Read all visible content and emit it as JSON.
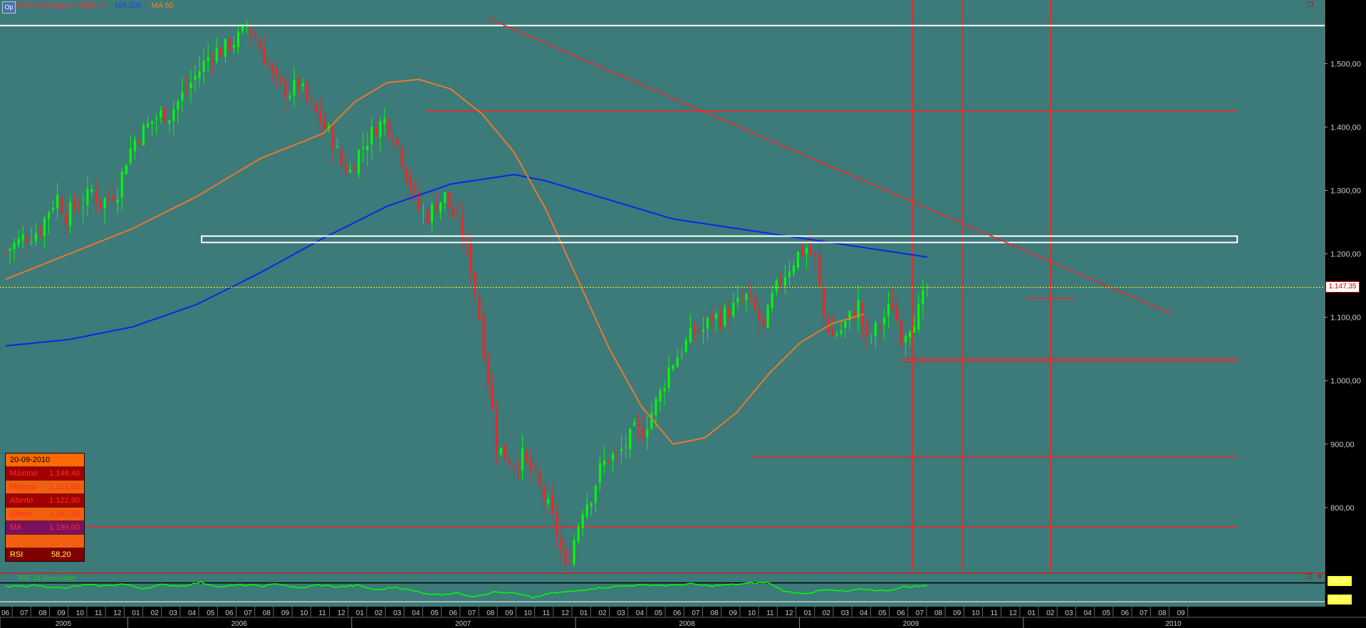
{
  "header": {
    "series_label": "SP500 | Semanal TMG+0",
    "ma200_label": "MA 200",
    "ma60_label": "MA 60"
  },
  "colors": {
    "background": "#3d7a7a",
    "up_candle": "#00ff00",
    "down_candle": "#ff2020",
    "ma200": "#0a28e6",
    "ma60": "#e87a2a",
    "trendline": "#ff2020",
    "level_line": "#ff2020",
    "white_zone": "#ffffff",
    "last_price_line": "#ffff00",
    "rsi_line": "#00ff00"
  },
  "infobox": {
    "date": "20-09-2010",
    "rows": [
      {
        "k": "Máximo",
        "v": "1.148,40"
      },
      {
        "k": "Mínimo",
        "v": "1.121,60"
      },
      {
        "k": "Aberto",
        "v": "1.122,60"
      },
      {
        "k": "Último",
        "v": "1.147,35"
      },
      {
        "k": "MA",
        "v": "1.199,00"
      },
      {
        "k": "",
        "v": ""
      }
    ],
    "rsi_label": "RSI",
    "rsi_value": "58,20"
  },
  "last_price_tag": "1.147,35",
  "rsi_panel": {
    "label": "RSI 14 Suavizado",
    "tag_top": "68,20",
    "tag_bottom": "30,00"
  },
  "chart_data": {
    "type": "candlestick",
    "timeframe": "weekly",
    "ylim": [
      700,
      1580
    ],
    "y_ticks": [
      {
        "value": 800,
        "label": "800,00"
      },
      {
        "value": 900,
        "label": "900,00"
      },
      {
        "value": 1000,
        "label": "1.000,00"
      },
      {
        "value": 1100,
        "label": "1.100,00"
      },
      {
        "value": 1200,
        "label": "1.200,00"
      },
      {
        "value": 1300,
        "label": "1.300,00"
      },
      {
        "value": 1400,
        "label": "1.400,00"
      },
      {
        "value": 1500,
        "label": "1.500,00"
      }
    ],
    "month_labels": [
      "06",
      "07",
      "08",
      "09",
      "10",
      "11",
      "12",
      "01",
      "02",
      "03",
      "04",
      "05",
      "06",
      "07",
      "08",
      "09",
      "10",
      "11",
      "12",
      "01",
      "02",
      "03",
      "04",
      "05",
      "06",
      "07",
      "08",
      "09",
      "10",
      "11",
      "12",
      "01",
      "02",
      "03",
      "04",
      "05",
      "06",
      "07",
      "08",
      "09",
      "10",
      "11",
      "12",
      "01",
      "02",
      "03",
      "04",
      "05",
      "06",
      "07",
      "08",
      "09",
      "10",
      "11",
      "12",
      "01",
      "02",
      "03",
      "04",
      "05",
      "06",
      "07",
      "08",
      "09"
    ],
    "year_labels": [
      "2005",
      "2006",
      "2007",
      "2008",
      "2009",
      "2010"
    ],
    "year_start_month_index": [
      0,
      7,
      19,
      31,
      43,
      55
    ],
    "close_anchors": [
      [
        0,
        1205
      ],
      [
        2,
        1215
      ],
      [
        4,
        1225
      ],
      [
        6,
        1230
      ],
      [
        8,
        1240
      ],
      [
        10,
        1270
      ],
      [
        12,
        1290
      ],
      [
        14,
        1260
      ],
      [
        16,
        1275
      ],
      [
        18,
        1280
      ],
      [
        20,
        1300
      ],
      [
        22,
        1280
      ],
      [
        24,
        1290
      ],
      [
        26,
        1300
      ],
      [
        28,
        1350
      ],
      [
        30,
        1380
      ],
      [
        32,
        1395
      ],
      [
        34,
        1410
      ],
      [
        36,
        1420
      ],
      [
        38,
        1420
      ],
      [
        40,
        1440
      ],
      [
        42,
        1460
      ],
      [
        44,
        1480
      ],
      [
        46,
        1500
      ],
      [
        48,
        1520
      ],
      [
        50,
        1520
      ],
      [
        52,
        1530
      ],
      [
        54,
        1540
      ],
      [
        56,
        1560
      ],
      [
        58,
        1540
      ],
      [
        60,
        1510
      ],
      [
        62,
        1480
      ],
      [
        64,
        1460
      ],
      [
        66,
        1455
      ],
      [
        68,
        1470
      ],
      [
        70,
        1440
      ],
      [
        72,
        1420
      ],
      [
        74,
        1400
      ],
      [
        76,
        1380
      ],
      [
        78,
        1340
      ],
      [
        80,
        1330
      ],
      [
        82,
        1360
      ],
      [
        84,
        1380
      ],
      [
        86,
        1400
      ],
      [
        88,
        1410
      ],
      [
        90,
        1390
      ],
      [
        92,
        1350
      ],
      [
        94,
        1310
      ],
      [
        96,
        1270
      ],
      [
        98,
        1260
      ],
      [
        100,
        1280
      ],
      [
        102,
        1290
      ],
      [
        104,
        1260
      ],
      [
        106,
        1230
      ],
      [
        108,
        1180
      ],
      [
        110,
        1100
      ],
      [
        112,
        1000
      ],
      [
        114,
        900
      ],
      [
        116,
        880
      ],
      [
        118,
        870
      ],
      [
        120,
        880
      ],
      [
        122,
        860
      ],
      [
        124,
        830
      ],
      [
        126,
        800
      ],
      [
        128,
        760
      ],
      [
        130,
        700
      ],
      [
        132,
        750
      ],
      [
        134,
        800
      ],
      [
        136,
        820
      ],
      [
        138,
        860
      ],
      [
        140,
        880
      ],
      [
        142,
        880
      ],
      [
        144,
        900
      ],
      [
        146,
        920
      ],
      [
        148,
        920
      ],
      [
        150,
        950
      ],
      [
        152,
        980
      ],
      [
        154,
        1020
      ],
      [
        156,
        1040
      ],
      [
        158,
        1060
      ],
      [
        160,
        1080
      ],
      [
        162,
        1080
      ],
      [
        164,
        1100
      ],
      [
        166,
        1100
      ],
      [
        168,
        1110
      ],
      [
        170,
        1120
      ],
      [
        172,
        1130
      ],
      [
        174,
        1110
      ],
      [
        176,
        1080
      ],
      [
        178,
        1130
      ],
      [
        180,
        1160
      ],
      [
        182,
        1180
      ],
      [
        184,
        1200
      ],
      [
        186,
        1210
      ],
      [
        188,
        1190
      ],
      [
        190,
        1100
      ],
      [
        192,
        1070
      ],
      [
        194,
        1080
      ],
      [
        196,
        1100
      ],
      [
        198,
        1120
      ],
      [
        200,
        1060
      ],
      [
        202,
        1080
      ],
      [
        204,
        1100
      ],
      [
        206,
        1120
      ],
      [
        208,
        1070
      ],
      [
        210,
        1090
      ],
      [
        212,
        1110
      ],
      [
        214,
        1147
      ]
    ],
    "ma200_anchors": [
      [
        0,
        1055
      ],
      [
        20,
        1065
      ],
      [
        40,
        1085
      ],
      [
        60,
        1120
      ],
      [
        80,
        1170
      ],
      [
        100,
        1225
      ],
      [
        120,
        1275
      ],
      [
        140,
        1310
      ],
      [
        160,
        1325
      ],
      [
        170,
        1315
      ],
      [
        190,
        1285
      ],
      [
        210,
        1255
      ],
      [
        230,
        1240
      ],
      [
        250,
        1225
      ],
      [
        270,
        1210
      ],
      [
        290,
        1195
      ]
    ],
    "ma60_anchors": [
      [
        0,
        1160
      ],
      [
        20,
        1200
      ],
      [
        40,
        1240
      ],
      [
        60,
        1290
      ],
      [
        80,
        1350
      ],
      [
        100,
        1390
      ],
      [
        110,
        1440
      ],
      [
        120,
        1470
      ],
      [
        130,
        1475
      ],
      [
        140,
        1460
      ],
      [
        150,
        1420
      ],
      [
        160,
        1360
      ],
      [
        170,
        1270
      ],
      [
        180,
        1160
      ],
      [
        190,
        1050
      ],
      [
        200,
        960
      ],
      [
        210,
        900
      ],
      [
        220,
        910
      ],
      [
        230,
        950
      ],
      [
        240,
        1010
      ],
      [
        250,
        1060
      ],
      [
        260,
        1090
      ],
      [
        270,
        1105
      ]
    ],
    "ma_index_scale": 0.738,
    "levels": [
      {
        "value": 1425,
        "from_month": 22.5,
        "to_month": 66
      },
      {
        "value": 880,
        "from_month": 40,
        "to_month": 66
      },
      {
        "value": 770,
        "from_month": 0,
        "to_month": 66
      },
      {
        "value": 1130,
        "from_month": 54.7,
        "to_month": 57.3
      },
      {
        "value": 1035,
        "from_month": 48,
        "to_month": 66
      },
      {
        "value": 1030,
        "from_month": 48,
        "to_month": 66
      }
    ],
    "white_zone": {
      "top": 1228,
      "bottom": 1218,
      "from_month": 10.5,
      "to_month": 66
    },
    "top_white_line": 1560,
    "last_price": 1147.35,
    "trendline": {
      "from": [
        25.8,
        1572
      ],
      "to": [
        62.5,
        1105
      ]
    },
    "vertical_lines_month": [
      48.6,
      51.3,
      56
    ],
    "rsi": {
      "ylim": [
        0,
        100
      ],
      "upper_level": 68.2,
      "lower_level": 30,
      "anchors": [
        [
          0,
          55
        ],
        [
          8,
          60
        ],
        [
          15,
          50
        ],
        [
          20,
          62
        ],
        [
          25,
          58
        ],
        [
          30,
          65
        ],
        [
          35,
          50
        ],
        [
          40,
          62
        ],
        [
          45,
          58
        ],
        [
          50,
          70
        ],
        [
          55,
          55
        ],
        [
          60,
          62
        ],
        [
          66,
          58
        ],
        [
          70,
          66
        ],
        [
          75,
          50
        ],
        [
          80,
          62
        ],
        [
          85,
          55
        ],
        [
          90,
          60
        ],
        [
          95,
          45
        ],
        [
          100,
          55
        ],
        [
          105,
          40
        ],
        [
          110,
          30
        ],
        [
          115,
          35
        ],
        [
          120,
          25
        ],
        [
          125,
          38
        ],
        [
          130,
          35
        ],
        [
          135,
          20
        ],
        [
          140,
          35
        ],
        [
          145,
          40
        ],
        [
          150,
          50
        ],
        [
          155,
          55
        ],
        [
          160,
          60
        ],
        [
          165,
          62
        ],
        [
          170,
          60
        ],
        [
          175,
          65
        ],
        [
          180,
          58
        ],
        [
          185,
          62
        ],
        [
          190,
          66
        ],
        [
          195,
          70
        ],
        [
          200,
          38
        ],
        [
          205,
          35
        ],
        [
          210,
          45
        ],
        [
          215,
          40
        ],
        [
          220,
          48
        ],
        [
          225,
          42
        ],
        [
          230,
          55
        ],
        [
          235,
          58
        ]
      ],
      "weeks": 236
    }
  }
}
